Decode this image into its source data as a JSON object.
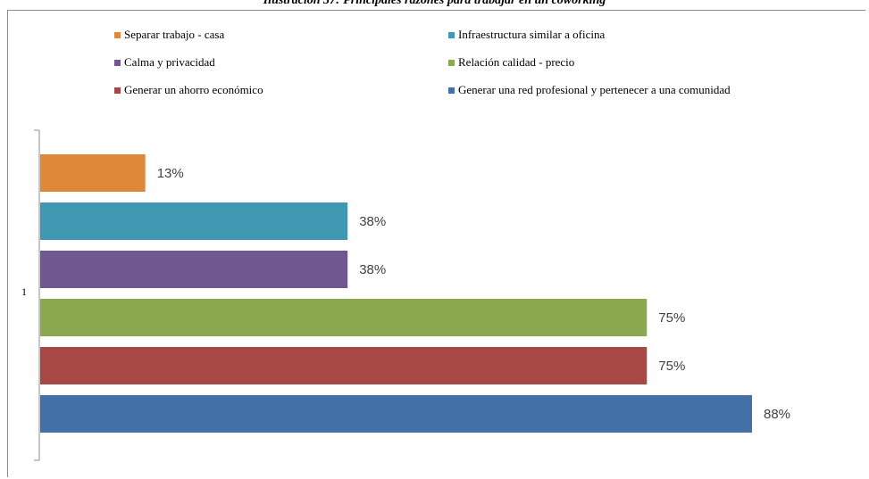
{
  "caption": "Ilustración 37: Principales razones para trabajar en un coworking",
  "chart_data": {
    "type": "bar",
    "orientation": "horizontal",
    "categories": [
      "1"
    ],
    "series": [
      {
        "name": "Separar trabajo - casa",
        "values": [
          13
        ],
        "label": "13%",
        "color": "#e0883a"
      },
      {
        "name": "Infraestructura similar a oficina",
        "values": [
          38
        ],
        "label": "38%",
        "color": "#4098b2"
      },
      {
        "name": "Calma y privacidad",
        "values": [
          38
        ],
        "label": "38%",
        "color": "#71578f"
      },
      {
        "name": "Relación calidad - precio",
        "values": [
          75
        ],
        "label": "75%",
        "color": "#8aa94e"
      },
      {
        "name": "Generar un ahorro económico",
        "values": [
          75
        ],
        "label": "75%",
        "color": "#a84845"
      },
      {
        "name": "Generar una red profesional y pertenecer a una comunidad",
        "values": [
          88
        ],
        "label": "88%",
        "color": "#4470a8"
      }
    ],
    "xlim": [
      0,
      100
    ],
    "grid": false,
    "legend": "top"
  }
}
